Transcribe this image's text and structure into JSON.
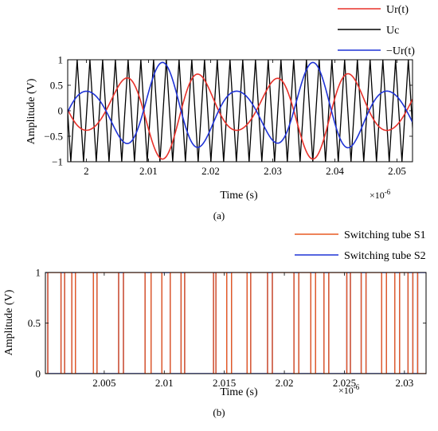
{
  "chart_data": [
    {
      "type": "line",
      "caption": "(a)",
      "xlabel": "Time (s)",
      "ylabel": "Amplitude (V)",
      "x_multiplier": "×10",
      "x_multiplier_exp": "-6",
      "xlim": [
        1.997,
        2.0525
      ],
      "ylim": [
        -1,
        1
      ],
      "xticks": [
        2,
        2.01,
        2.02,
        2.03,
        2.04,
        2.05
      ],
      "xtick_labels": [
        "2",
        "2.01",
        "2.02",
        "2.03",
        "2.04",
        "2.05"
      ],
      "yticks": [
        -1,
        -0.5,
        0,
        0.5,
        1
      ],
      "ytick_labels": [
        "−1",
        "−0.5",
        "0",
        "0.5",
        "1"
      ],
      "legend_position": "top-right",
      "series": [
        {
          "name": "Ur(t)",
          "color": "#e8312a",
          "kind": "modulated-sine",
          "carrier_period": 0.0121,
          "phase_zero": 1.9971,
          "envelope": [
            0.38,
            0.95
          ],
          "envelope_period": 0.0243
        },
        {
          "name": "Uc",
          "color": "#000000",
          "kind": "triangle",
          "period": 0.00205,
          "amplitude": 1
        },
        {
          "name": "−Ur(t)",
          "color": "#1f33d6",
          "kind": "modulated-sine-negated"
        }
      ]
    },
    {
      "type": "line",
      "caption": "(b)",
      "xlabel": "Time (s)",
      "ylabel": "Amplitude (V)",
      "x_multiplier": "×10",
      "x_multiplier_exp": "-6",
      "xlim": [
        2.0001,
        2.0318
      ],
      "ylim": [
        0,
        1
      ],
      "xticks": [
        2.005,
        2.01,
        2.015,
        2.02,
        2.025,
        2.03
      ],
      "xtick_labels": [
        "2.005",
        "2.01",
        "2.015",
        "2.02",
        "2.025",
        "2.03"
      ],
      "yticks": [
        0,
        0.5,
        1
      ],
      "ytick_labels": [
        "0",
        "0.5",
        "1"
      ],
      "legend_position": "top-right",
      "series": [
        {
          "name": "Switching tube S1",
          "color": "#e85a22",
          "kind": "pulse",
          "transitions": [
            2.0003,
            2.0014,
            2.0017,
            2.0023,
            2.0026,
            2.0041,
            2.0044,
            2.0062,
            2.0066,
            2.0084,
            2.0089,
            2.0098,
            2.0105,
            2.0114,
            2.0117,
            2.0141,
            2.0143,
            2.0152,
            2.0156,
            2.0169,
            2.0172,
            2.0186,
            2.019,
            2.0208,
            2.0212,
            2.0222,
            2.0226,
            2.0233,
            2.0237,
            2.0252,
            2.0255,
            2.0264,
            2.0268,
            2.0281,
            2.0285,
            2.0292,
            2.0296,
            2.0303,
            2.0307,
            2.0311
          ]
        },
        {
          "name": "Switching tube S2",
          "color": "#1f33d6",
          "kind": "pulse-complement"
        }
      ]
    }
  ]
}
